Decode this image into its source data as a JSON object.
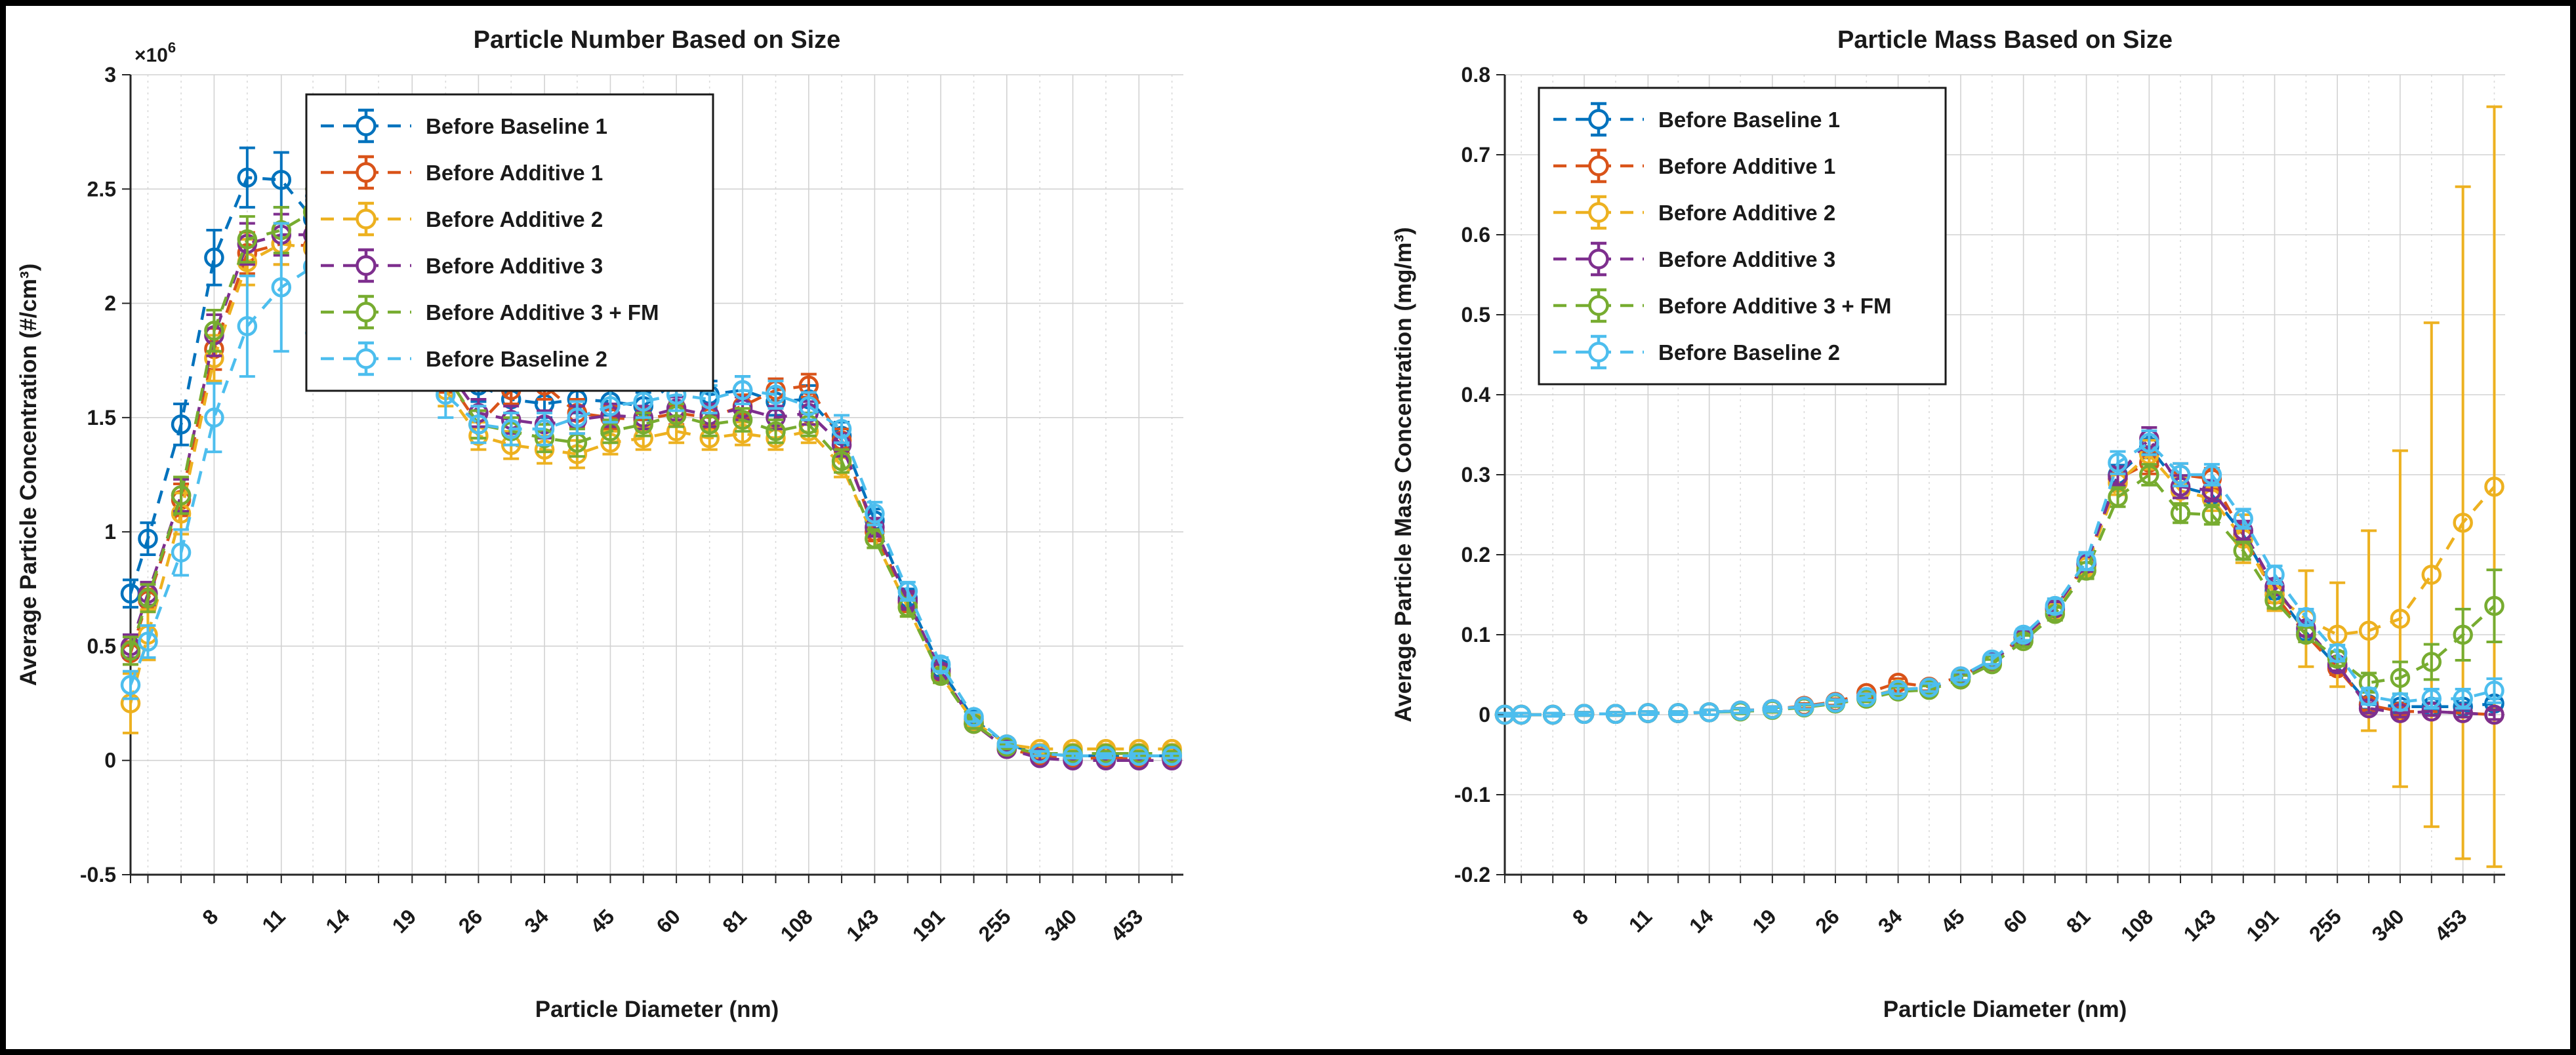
{
  "x_channels": [
    5.6,
    6.04,
    6.98,
    8.06,
    9.31,
    10.8,
    12.4,
    14.3,
    16.5,
    19.1,
    22.1,
    25.5,
    29.4,
    34.0,
    39.2,
    45.3,
    52.3,
    60.4,
    69.8,
    80.6,
    93.1,
    107.5,
    124.1,
    143.3,
    165.5,
    191.1,
    220.7,
    254.8,
    294.3,
    339.8,
    392.4,
    453.2,
    523.3
  ],
  "xtick_indices": [
    3,
    5,
    7,
    9,
    11,
    13,
    15,
    17,
    19,
    21,
    23,
    25,
    27,
    29,
    31
  ],
  "xtick_labels": [
    "8",
    "11",
    "14",
    "19",
    "26",
    "34",
    "45",
    "60",
    "81",
    "108",
    "143",
    "191",
    "255",
    "340",
    "453"
  ],
  "chart_data": [
    {
      "type": "errorbar-line",
      "x_scale": "log",
      "title": "Particle Number Based on Size",
      "xlabel": "Particle Diameter (nm)",
      "ylabel": "Average Particle Concentration (#/cm³)",
      "exponent": {
        "mant": "×10",
        "exp": "6"
      },
      "ylim": [
        -0.5,
        3.0
      ],
      "ytick_values": [
        -0.5,
        0,
        0.5,
        1,
        1.5,
        2,
        2.5,
        3
      ],
      "ytick_labels": [
        "-0.5",
        "0",
        "0.5",
        "1",
        "1.5",
        "2",
        "2.5",
        "3"
      ],
      "grid": "on",
      "legend_position": "upper-left",
      "series": [
        {
          "label": "Before Baseline 1",
          "color": "#0072BD",
          "values": [
            0.73,
            0.97,
            1.47,
            2.2,
            2.55,
            2.54,
            2.37,
            2.2,
            2.05,
            1.93,
            1.76,
            1.64,
            1.58,
            1.56,
            1.58,
            1.57,
            1.55,
            1.66,
            1.6,
            1.62,
            1.57,
            1.58,
            1.42,
            1.05,
            0.71,
            0.4,
            0.18,
            0.07,
            0.03,
            0.02,
            0.02,
            0.02,
            0.02
          ],
          "errors": [
            0.06,
            0.07,
            0.09,
            0.12,
            0.13,
            0.12,
            0.1,
            0.27,
            0.1,
            0.09,
            0.08,
            0.07,
            0.06,
            0.06,
            0.06,
            0.06,
            0.06,
            0.07,
            0.06,
            0.06,
            0.06,
            0.06,
            0.06,
            0.05,
            0.04,
            0.03,
            0.02,
            0.01,
            0.01,
            0.01,
            0.01,
            0.01,
            0.01
          ]
        },
        {
          "label": "Before Additive 1",
          "color": "#D95319",
          "values": [
            0.47,
            0.7,
            1.14,
            1.8,
            2.22,
            2.26,
            2.25,
            2.24,
            2.12,
            1.92,
            1.68,
            1.47,
            1.62,
            1.64,
            1.52,
            1.5,
            1.49,
            1.52,
            1.5,
            1.55,
            1.62,
            1.64,
            1.4,
            1.0,
            0.69,
            0.38,
            0.16,
            0.05,
            0.02,
            0.01,
            0.01,
            0.01,
            0.01
          ],
          "errors": [
            0.05,
            0.05,
            0.07,
            0.09,
            0.09,
            0.09,
            0.08,
            0.08,
            0.08,
            0.07,
            0.07,
            0.06,
            0.06,
            0.06,
            0.06,
            0.05,
            0.05,
            0.05,
            0.05,
            0.05,
            0.05,
            0.05,
            0.05,
            0.04,
            0.04,
            0.03,
            0.02,
            0.01,
            0.01,
            0.01,
            0.01,
            0.01,
            0.01
          ]
        },
        {
          "label": "Before Additive 2",
          "color": "#EDB120",
          "values": [
            0.25,
            0.55,
            1.08,
            1.76,
            2.18,
            2.26,
            2.24,
            2.22,
            2.08,
            1.88,
            1.62,
            1.42,
            1.38,
            1.36,
            1.34,
            1.39,
            1.41,
            1.44,
            1.41,
            1.43,
            1.41,
            1.44,
            1.29,
            0.97,
            0.67,
            0.37,
            0.17,
            0.07,
            0.05,
            0.05,
            0.05,
            0.05,
            0.05
          ],
          "errors": [
            0.13,
            0.11,
            0.09,
            0.1,
            0.1,
            0.09,
            0.08,
            0.08,
            0.08,
            0.07,
            0.07,
            0.06,
            0.06,
            0.06,
            0.06,
            0.05,
            0.05,
            0.05,
            0.05,
            0.05,
            0.05,
            0.05,
            0.05,
            0.04,
            0.04,
            0.03,
            0.02,
            0.02,
            0.02,
            0.02,
            0.02,
            0.02,
            0.02
          ]
        },
        {
          "label": "Before Additive 3",
          "color": "#7E2F8E",
          "values": [
            0.5,
            0.73,
            1.16,
            1.86,
            2.26,
            2.3,
            2.3,
            2.27,
            2.14,
            1.94,
            1.72,
            1.52,
            1.49,
            1.47,
            1.49,
            1.51,
            1.5,
            1.54,
            1.51,
            1.54,
            1.5,
            1.52,
            1.38,
            1.02,
            0.7,
            0.39,
            0.16,
            0.05,
            0.01,
            0.0,
            0.0,
            0.0,
            0.0
          ],
          "errors": [
            0.05,
            0.05,
            0.07,
            0.09,
            0.09,
            0.09,
            0.08,
            0.08,
            0.08,
            0.07,
            0.07,
            0.06,
            0.06,
            0.06,
            0.06,
            0.05,
            0.05,
            0.05,
            0.05,
            0.05,
            0.05,
            0.05,
            0.05,
            0.04,
            0.04,
            0.03,
            0.02,
            0.01,
            0.01,
            0.01,
            0.01,
            0.01,
            0.01
          ]
        },
        {
          "label": "Before Additive 3 + FM",
          "color": "#77AC30",
          "values": [
            0.48,
            0.71,
            1.16,
            1.88,
            2.28,
            2.32,
            2.4,
            2.29,
            2.13,
            1.92,
            1.69,
            1.47,
            1.44,
            1.41,
            1.39,
            1.44,
            1.47,
            1.51,
            1.47,
            1.49,
            1.44,
            1.47,
            1.31,
            0.97,
            0.67,
            0.37,
            0.16,
            0.06,
            0.03,
            0.03,
            0.03,
            0.03,
            0.03
          ],
          "errors": [
            0.06,
            0.06,
            0.08,
            0.09,
            0.1,
            0.1,
            0.1,
            0.09,
            0.08,
            0.07,
            0.07,
            0.06,
            0.06,
            0.06,
            0.06,
            0.05,
            0.05,
            0.05,
            0.05,
            0.05,
            0.05,
            0.05,
            0.05,
            0.04,
            0.04,
            0.03,
            0.02,
            0.01,
            0.01,
            0.01,
            0.01,
            0.01,
            0.01
          ]
        },
        {
          "label": "Before Baseline 2",
          "color": "#4DBEEE",
          "values": [
            0.33,
            0.52,
            0.91,
            1.5,
            1.9,
            2.07,
            2.16,
            2.07,
            2.01,
            1.79,
            1.6,
            1.47,
            1.45,
            1.45,
            1.5,
            1.55,
            1.57,
            1.6,
            1.58,
            1.62,
            1.6,
            1.55,
            1.45,
            1.08,
            0.74,
            0.42,
            0.19,
            0.07,
            0.03,
            0.02,
            0.02,
            0.02,
            0.02
          ],
          "errors": [
            0.06,
            0.07,
            0.1,
            0.15,
            0.22,
            0.28,
            0.29,
            0.22,
            0.15,
            0.12,
            0.1,
            0.08,
            0.07,
            0.07,
            0.07,
            0.07,
            0.07,
            0.07,
            0.06,
            0.06,
            0.06,
            0.06,
            0.06,
            0.05,
            0.04,
            0.03,
            0.02,
            0.01,
            0.01,
            0.01,
            0.01,
            0.01,
            0.01
          ]
        }
      ]
    },
    {
      "type": "errorbar-line",
      "x_scale": "log",
      "title": "Particle Mass Based on Size",
      "xlabel": "Particle Diameter (nm)",
      "ylabel": "Average Particle Mass Concentration (mg/m³)",
      "ylim": [
        -0.2,
        0.8
      ],
      "ytick_values": [
        -0.2,
        -0.1,
        0,
        0.1,
        0.2,
        0.3,
        0.4,
        0.5,
        0.6,
        0.7,
        0.8
      ],
      "ytick_labels": [
        "-0.2",
        "-0.1",
        "0",
        "0.1",
        "0.2",
        "0.3",
        "0.4",
        "0.5",
        "0.6",
        "0.7",
        "0.8"
      ],
      "grid": "on",
      "legend_position": "upper-left",
      "series": [
        {
          "label": "Before Baseline 1",
          "color": "#0072BD",
          "values": [
            0.0,
            0.0,
            0.0,
            0.001,
            0.001,
            0.002,
            0.002,
            0.003,
            0.005,
            0.007,
            0.01,
            0.015,
            0.022,
            0.031,
            0.033,
            0.047,
            0.067,
            0.097,
            0.132,
            0.188,
            0.3,
            0.335,
            0.285,
            0.275,
            0.225,
            0.155,
            0.103,
            0.06,
            0.013,
            0.01,
            0.01,
            0.01,
            0.014
          ],
          "errors": [
            0.002,
            0.002,
            0.002,
            0.002,
            0.002,
            0.002,
            0.002,
            0.003,
            0.003,
            0.003,
            0.003,
            0.004,
            0.004,
            0.005,
            0.005,
            0.005,
            0.006,
            0.007,
            0.008,
            0.01,
            0.012,
            0.014,
            0.014,
            0.013,
            0.012,
            0.01,
            0.009,
            0.008,
            0.006,
            0.005,
            0.005,
            0.005,
            0.006
          ]
        },
        {
          "label": "Before Additive 1",
          "color": "#D95319",
          "values": [
            0.0,
            0.0,
            0.0,
            0.001,
            0.001,
            0.002,
            0.002,
            0.003,
            0.005,
            0.007,
            0.011,
            0.016,
            0.027,
            0.04,
            0.035,
            0.048,
            0.068,
            0.098,
            0.133,
            0.19,
            0.295,
            0.315,
            0.3,
            0.295,
            0.225,
            0.15,
            0.1,
            0.058,
            0.012,
            0.004,
            0.004,
            0.002,
            0.0
          ],
          "errors": [
            0.002,
            0.002,
            0.002,
            0.002,
            0.002,
            0.002,
            0.002,
            0.003,
            0.003,
            0.003,
            0.003,
            0.004,
            0.004,
            0.005,
            0.005,
            0.005,
            0.006,
            0.007,
            0.008,
            0.01,
            0.012,
            0.014,
            0.014,
            0.013,
            0.012,
            0.01,
            0.009,
            0.008,
            0.006,
            0.005,
            0.005,
            0.005,
            0.006
          ]
        },
        {
          "label": "Before Additive 2",
          "color": "#EDB120",
          "values": [
            0.0,
            0.0,
            0.0,
            0.001,
            0.001,
            0.002,
            0.002,
            0.003,
            0.005,
            0.007,
            0.01,
            0.015,
            0.022,
            0.032,
            0.033,
            0.046,
            0.066,
            0.096,
            0.13,
            0.185,
            0.29,
            0.325,
            0.28,
            0.27,
            0.22,
            0.15,
            0.12,
            0.1,
            0.105,
            0.12,
            0.175,
            0.24,
            0.285
          ],
          "errors": [
            0.002,
            0.002,
            0.002,
            0.002,
            0.002,
            0.002,
            0.002,
            0.003,
            0.003,
            0.003,
            0.003,
            0.004,
            0.005,
            0.006,
            0.006,
            0.006,
            0.007,
            0.008,
            0.01,
            0.012,
            0.015,
            0.018,
            0.016,
            0.015,
            0.03,
            0.02,
            0.06,
            0.065,
            0.125,
            0.21,
            0.315,
            0.42,
            0.475
          ]
        },
        {
          "label": "Before Additive 3",
          "color": "#7E2F8E",
          "values": [
            0.0,
            0.0,
            0.0,
            0.001,
            0.001,
            0.002,
            0.002,
            0.003,
            0.005,
            0.007,
            0.01,
            0.015,
            0.022,
            0.031,
            0.033,
            0.047,
            0.067,
            0.097,
            0.133,
            0.189,
            0.298,
            0.345,
            0.285,
            0.28,
            0.23,
            0.16,
            0.108,
            0.063,
            0.008,
            0.002,
            0.004,
            0.002,
            0.0
          ],
          "errors": [
            0.002,
            0.002,
            0.002,
            0.002,
            0.002,
            0.002,
            0.002,
            0.003,
            0.003,
            0.003,
            0.003,
            0.004,
            0.004,
            0.005,
            0.005,
            0.005,
            0.006,
            0.007,
            0.008,
            0.01,
            0.012,
            0.014,
            0.014,
            0.013,
            0.012,
            0.01,
            0.009,
            0.008,
            0.006,
            0.005,
            0.005,
            0.005,
            0.006
          ]
        },
        {
          "label": "Before Additive 3 + FM",
          "color": "#77AC30",
          "values": [
            0.0,
            0.0,
            0.0,
            0.001,
            0.001,
            0.002,
            0.002,
            0.003,
            0.004,
            0.006,
            0.009,
            0.014,
            0.02,
            0.029,
            0.031,
            0.044,
            0.063,
            0.092,
            0.126,
            0.18,
            0.272,
            0.3,
            0.252,
            0.25,
            0.205,
            0.143,
            0.1,
            0.07,
            0.04,
            0.046,
            0.066,
            0.1,
            0.136
          ],
          "errors": [
            0.002,
            0.002,
            0.002,
            0.002,
            0.002,
            0.002,
            0.002,
            0.003,
            0.003,
            0.003,
            0.003,
            0.004,
            0.004,
            0.005,
            0.005,
            0.005,
            0.006,
            0.007,
            0.008,
            0.01,
            0.012,
            0.013,
            0.012,
            0.012,
            0.011,
            0.01,
            0.009,
            0.009,
            0.012,
            0.02,
            0.022,
            0.032,
            0.045
          ]
        },
        {
          "label": "Before Baseline 2",
          "color": "#4DBEEE",
          "values": [
            0.0,
            0.0,
            0.0,
            0.001,
            0.001,
            0.002,
            0.002,
            0.003,
            0.005,
            0.007,
            0.01,
            0.015,
            0.022,
            0.031,
            0.034,
            0.048,
            0.069,
            0.1,
            0.136,
            0.192,
            0.315,
            0.34,
            0.3,
            0.3,
            0.245,
            0.175,
            0.122,
            0.077,
            0.023,
            0.016,
            0.02,
            0.02,
            0.03
          ],
          "errors": [
            0.002,
            0.002,
            0.002,
            0.002,
            0.002,
            0.002,
            0.002,
            0.003,
            0.003,
            0.003,
            0.003,
            0.004,
            0.004,
            0.005,
            0.005,
            0.005,
            0.006,
            0.007,
            0.009,
            0.011,
            0.014,
            0.015,
            0.014,
            0.013,
            0.012,
            0.011,
            0.01,
            0.01,
            0.01,
            0.01,
            0.012,
            0.012,
            0.015
          ]
        }
      ]
    }
  ]
}
